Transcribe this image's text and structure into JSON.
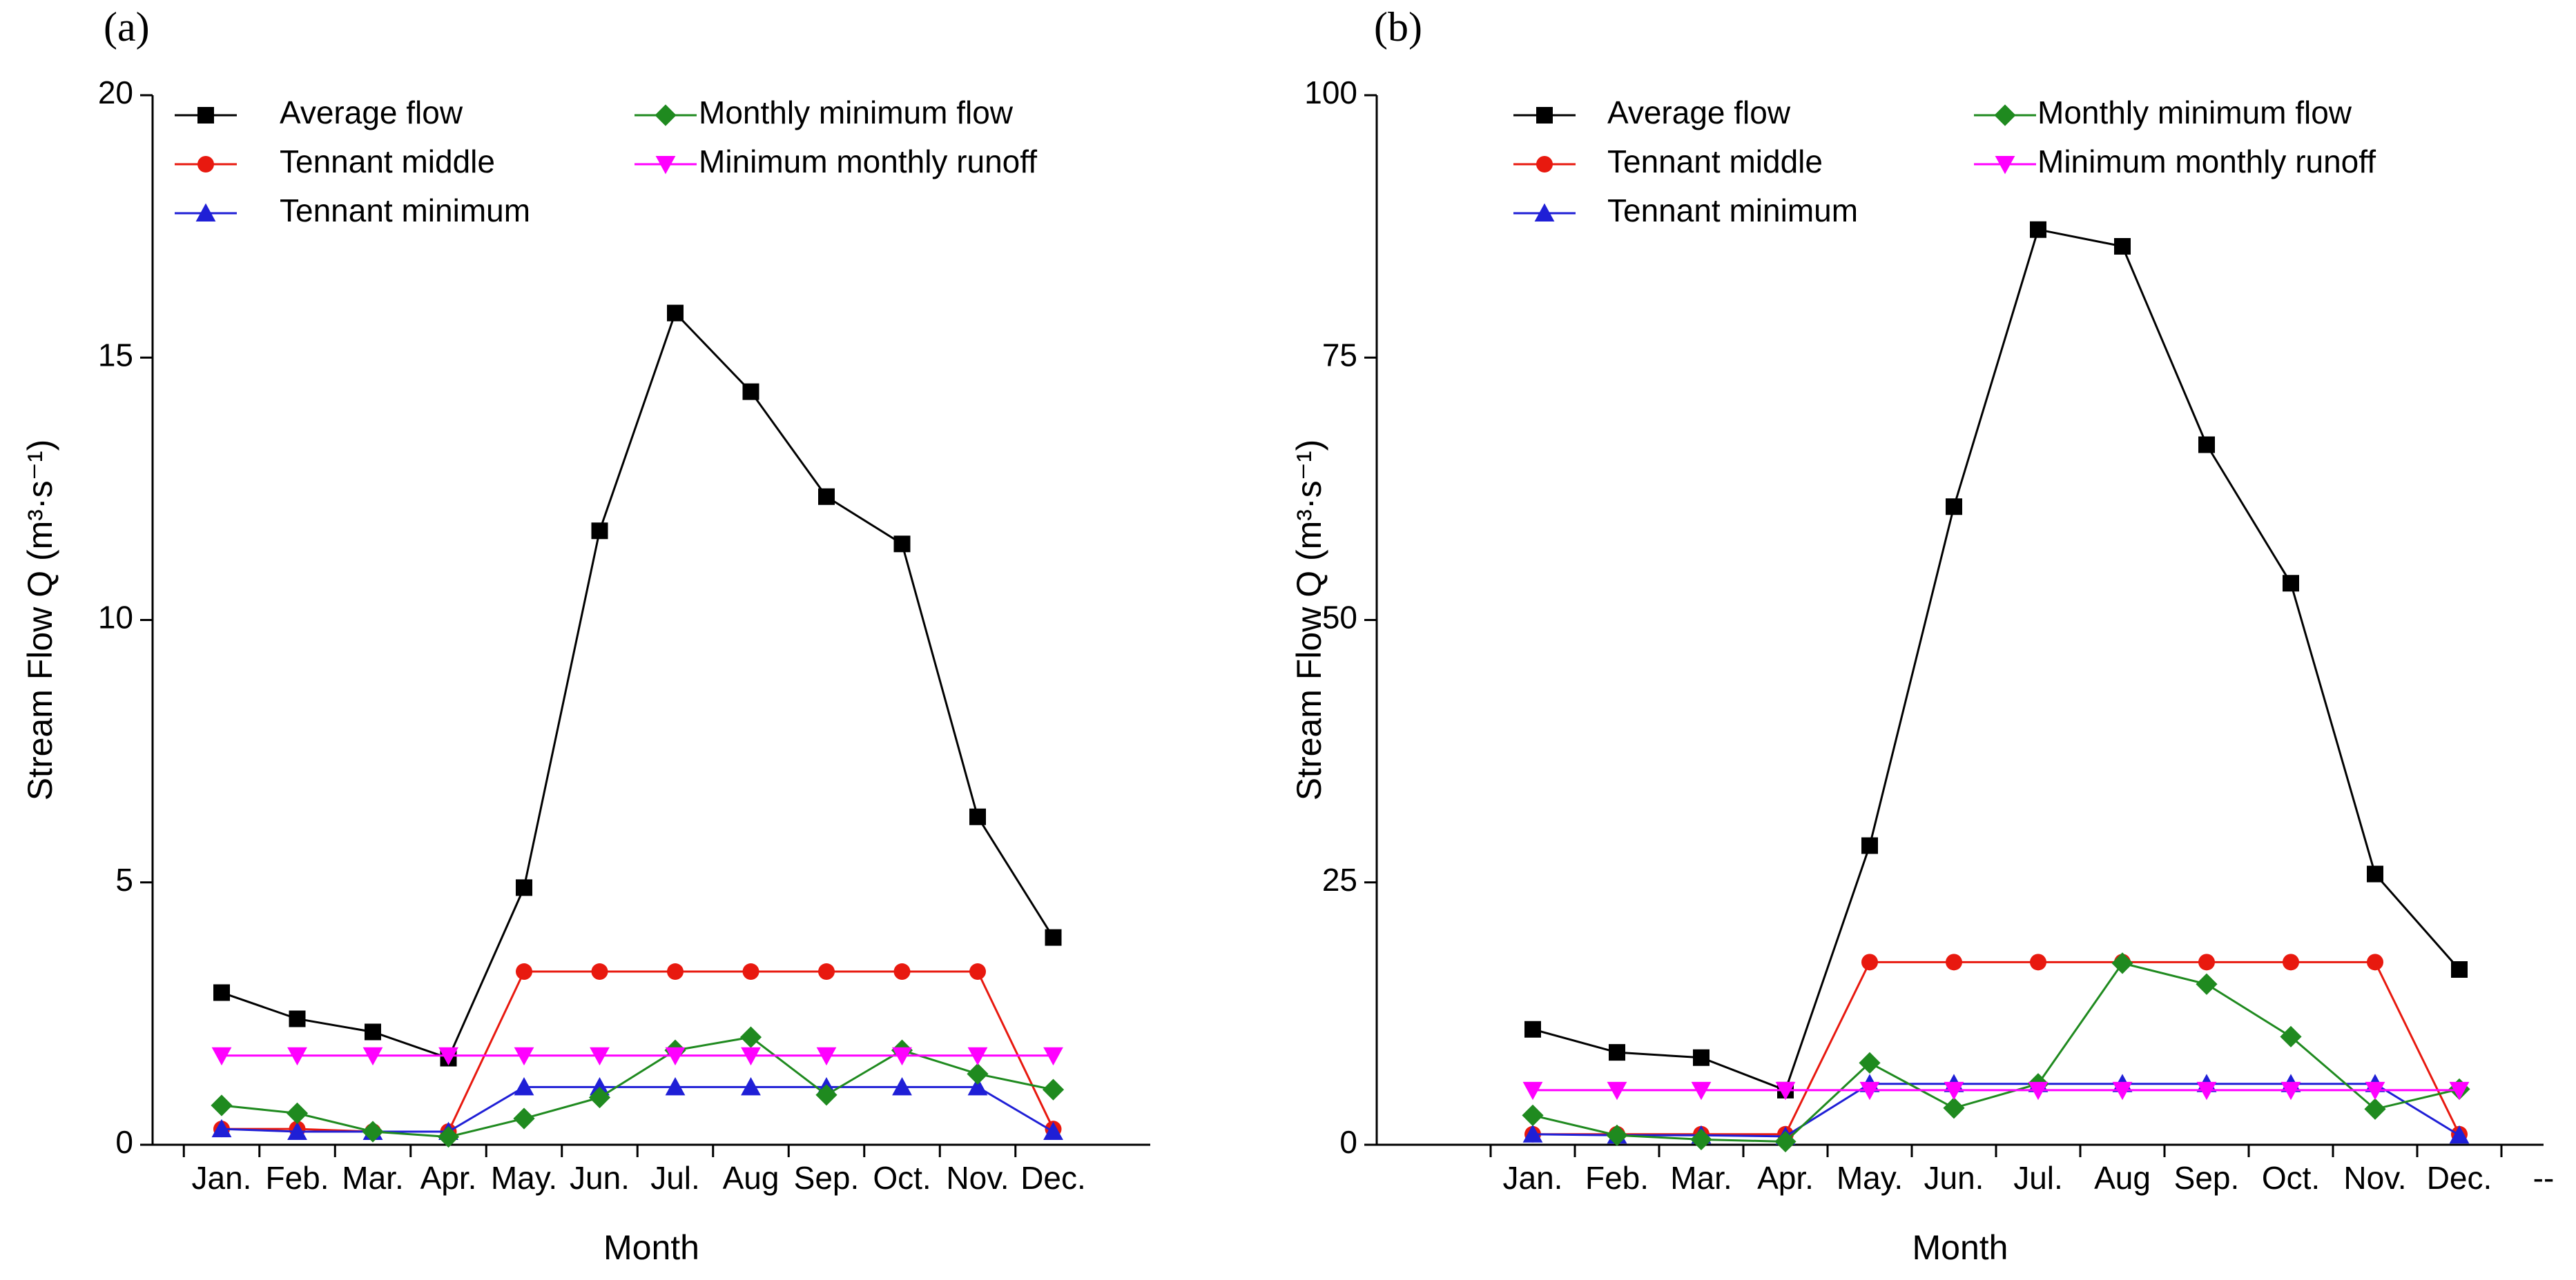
{
  "chart_data": [
    {
      "type": "line",
      "title": "(a)",
      "x_label": "Month",
      "y_label": "Stream Flow Q (m³·s⁻¹)",
      "categories": [
        "Jan.",
        "Feb.",
        "Mar.",
        "Apr.",
        "May.",
        "Jun.",
        "Jul.",
        "Aug",
        "Sep.",
        "Oct.",
        "Nov.",
        "Dec."
      ],
      "ylim": [
        0,
        20
      ],
      "yticks": [
        0,
        5,
        10,
        15,
        20
      ],
      "grid": false,
      "series": [
        {
          "name": "Average flow",
          "color": "#000000",
          "marker": "square",
          "values": [
            2.9,
            2.4,
            2.15,
            1.65,
            4.9,
            11.7,
            15.85,
            14.35,
            12.35,
            11.45,
            6.25,
            3.95
          ]
        },
        {
          "name": "Tennant middle",
          "color": "#e8190f",
          "marker": "circle",
          "values": [
            0.3,
            0.3,
            0.25,
            0.25,
            3.3,
            3.3,
            3.3,
            3.3,
            3.3,
            3.3,
            3.3,
            0.3
          ]
        },
        {
          "name": "Tennant minimum",
          "color": "#1f1fd6",
          "marker": "triangle-up",
          "values": [
            0.3,
            0.25,
            0.25,
            0.25,
            1.1,
            1.1,
            1.1,
            1.1,
            1.1,
            1.1,
            1.1,
            0.25
          ]
        },
        {
          "name": "Monthly minimum flow",
          "color": "#1f8a1f",
          "marker": "diamond",
          "values": [
            0.75,
            0.6,
            0.25,
            0.15,
            0.5,
            0.9,
            1.8,
            2.05,
            0.95,
            1.8,
            1.35,
            1.05
          ]
        },
        {
          "name": "Minimum monthly runoff",
          "color": "#ff00ff",
          "marker": "triangle-down",
          "values": [
            1.7,
            1.7,
            1.7,
            1.7,
            1.7,
            1.7,
            1.7,
            1.7,
            1.7,
            1.7,
            1.7,
            1.7
          ]
        }
      ]
    },
    {
      "type": "line",
      "title": "(b)",
      "x_label": "Month",
      "y_label": "Stream Flow Q (m³·s⁻¹)",
      "categories": [
        "Jan.",
        "Feb.",
        "Mar.",
        "Apr.",
        "May.",
        "Jun.",
        "Jul.",
        "Aug",
        "Sep.",
        "Oct.",
        "Nov.",
        "Dec.",
        "--"
      ],
      "ylim": [
        0,
        100
      ],
      "yticks": [
        0,
        25,
        50,
        75,
        100
      ],
      "grid": false,
      "series": [
        {
          "name": "Average flow",
          "color": "#000000",
          "marker": "square",
          "values": [
            11,
            8.8,
            8.3,
            5.2,
            28.5,
            60.8,
            87.2,
            85.6,
            66.7,
            53.5,
            25.8,
            16.7,
            null
          ]
        },
        {
          "name": "Tennant middle",
          "color": "#e8190f",
          "marker": "circle",
          "values": [
            1,
            1,
            1,
            1,
            17.4,
            17.4,
            17.4,
            17.4,
            17.4,
            17.4,
            17.4,
            1,
            null
          ]
        },
        {
          "name": "Tennant minimum",
          "color": "#1f1fd6",
          "marker": "triangle-up",
          "values": [
            1,
            0.9,
            0.9,
            0.8,
            5.8,
            5.8,
            5.8,
            5.8,
            5.8,
            5.8,
            5.8,
            0.9,
            null
          ]
        },
        {
          "name": "Monthly minimum flow",
          "color": "#1f8a1f",
          "marker": "diamond",
          "values": [
            2.8,
            0.9,
            0.5,
            0.3,
            7.8,
            3.5,
            5.8,
            17.3,
            15.3,
            10.3,
            3.4,
            5.3,
            null
          ]
        },
        {
          "name": "Minimum monthly runoff",
          "color": "#ff00ff",
          "marker": "triangle-down",
          "values": [
            5.2,
            5.2,
            5.2,
            5.2,
            5.2,
            5.2,
            5.2,
            5.2,
            5.2,
            5.2,
            5.2,
            5.2,
            null
          ]
        }
      ]
    }
  ]
}
